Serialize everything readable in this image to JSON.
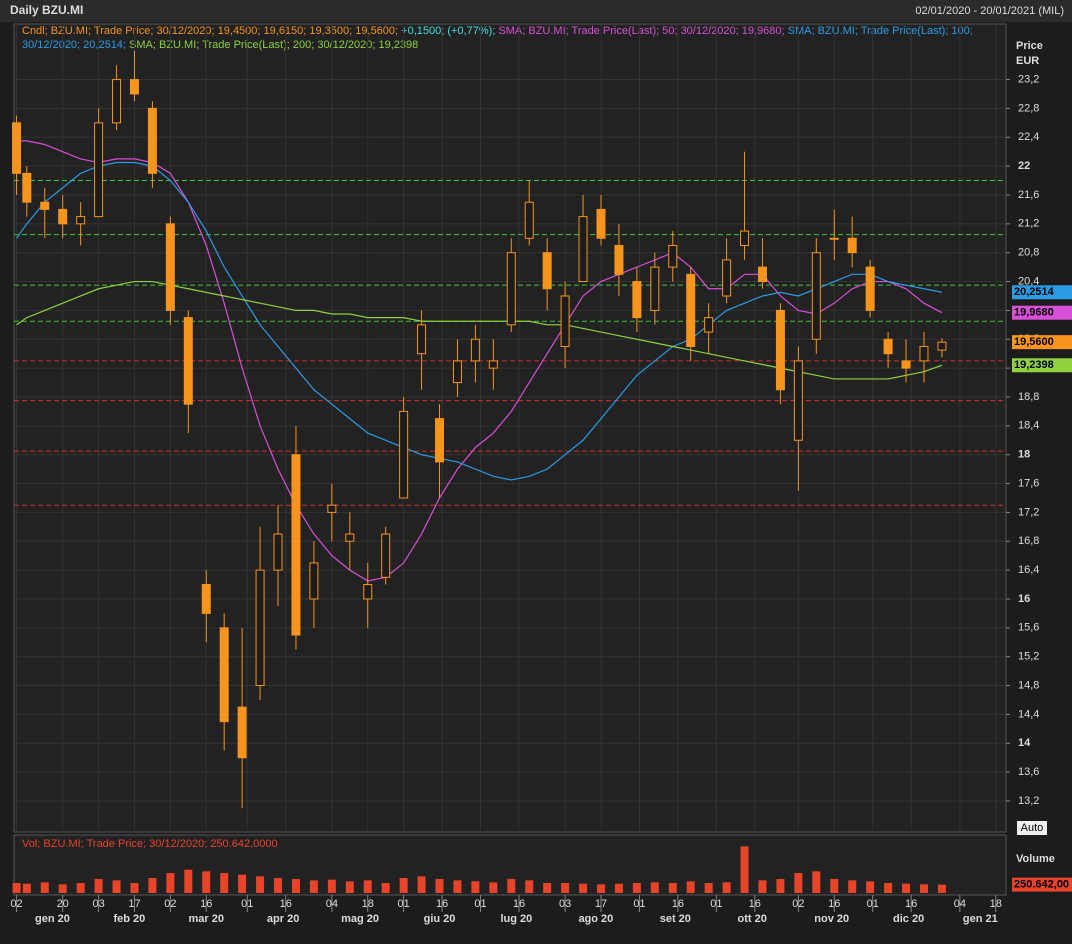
{
  "chart_data": {
    "type": "candlestick",
    "title": "Daily BZU.MI",
    "date_range": "02/01/2020 - 20/01/2021 (MIL)",
    "y_axis_title": "Price",
    "y_axis_unit": "EUR",
    "volume_title": "Volume",
    "scale_button": "Auto",
    "legend_lines": [
      [
        {
          "text": "Cndl; BZU.MI; Trade Price; 30/12/2020; 19,4500; 19,6150; 19,3500; 19,5600;",
          "color": "#f7941d"
        },
        {
          "text": "+0,1500; (+0,77%);",
          "color": "#3ee0e0"
        },
        {
          "text": "SMA; BZU.MI; Trade Price(Last); 50; 30/12/2020; 19,9680;",
          "color": "#d84fd8"
        },
        {
          "text": "SMA; BZU.MI; Trade Price(Last); 100;",
          "color": "#2b9be6"
        }
      ],
      [
        {
          "text": "30/12/2020; 20,2514;",
          "color": "#2b9be6"
        },
        {
          "text": "SMA; BZU.MI; Trade Price(Last); 200; 30/12/2020; 19,2398",
          "color": "#8fd13f"
        }
      ]
    ],
    "volume_legend": "Vol; BZU.MI; Trade Price; 30/12/2020; 250.642,0000",
    "xlim": [
      "2020-01-01",
      "2021-01-22"
    ],
    "x": [
      "2020-01-02",
      "2020-01-06",
      "2020-01-13",
      "2020-01-20",
      "2020-01-27",
      "2020-02-03",
      "2020-02-10",
      "2020-02-17",
      "2020-02-24",
      "2020-03-02",
      "2020-03-09",
      "2020-03-16",
      "2020-03-23",
      "2020-03-30",
      "2020-04-06",
      "2020-04-13",
      "2020-04-20",
      "2020-04-27",
      "2020-05-04",
      "2020-05-11",
      "2020-05-18",
      "2020-05-25",
      "2020-06-01",
      "2020-06-08",
      "2020-06-15",
      "2020-06-22",
      "2020-06-29",
      "2020-07-06",
      "2020-07-13",
      "2020-07-20",
      "2020-07-27",
      "2020-08-03",
      "2020-08-10",
      "2020-08-17",
      "2020-08-24",
      "2020-08-31",
      "2020-09-07",
      "2020-09-14",
      "2020-09-21",
      "2020-09-28",
      "2020-10-05",
      "2020-10-12",
      "2020-10-19",
      "2020-10-26",
      "2020-11-02",
      "2020-11-09",
      "2020-11-16",
      "2020-11-23",
      "2020-11-30",
      "2020-12-07",
      "2020-12-14",
      "2020-12-21",
      "2020-12-28"
    ],
    "candles": {
      "color": "#f7941d",
      "open": [
        22.6,
        21.9,
        21.5,
        21.4,
        21.2,
        21.3,
        22.6,
        23.2,
        22.8,
        21.2,
        19.9,
        16.2,
        15.6,
        14.5,
        14.8,
        16.4,
        18.0,
        16.0,
        17.2,
        16.8,
        16.0,
        16.3,
        17.4,
        19.4,
        18.5,
        19.0,
        19.3,
        19.2,
        19.8,
        21.0,
        20.8,
        19.5,
        20.4,
        21.4,
        20.9,
        20.4,
        20.0,
        20.6,
        20.5,
        19.7,
        20.2,
        20.9,
        20.6,
        20.0,
        18.2,
        19.6,
        21.0,
        21.0,
        20.6,
        19.6,
        19.3,
        19.3,
        19.45
      ],
      "high": [
        22.7,
        22.0,
        21.7,
        21.6,
        21.5,
        22.8,
        23.4,
        23.6,
        22.9,
        21.3,
        20.0,
        16.4,
        15.8,
        15.6,
        17.0,
        17.3,
        18.4,
        16.8,
        17.6,
        17.2,
        16.5,
        17.0,
        18.8,
        20.0,
        18.7,
        19.6,
        19.8,
        19.6,
        21.0,
        21.8,
        21.0,
        20.4,
        21.6,
        21.6,
        21.2,
        20.6,
        20.8,
        21.1,
        20.6,
        20.1,
        21.0,
        22.2,
        21.0,
        20.1,
        19.5,
        21.0,
        21.4,
        21.3,
        20.7,
        19.7,
        19.6,
        19.7,
        19.615
      ],
      "low": [
        21.6,
        21.3,
        21.0,
        21.0,
        20.9,
        21.3,
        22.5,
        22.9,
        21.7,
        19.8,
        18.3,
        15.4,
        13.9,
        13.1,
        14.6,
        15.9,
        15.3,
        15.6,
        16.8,
        16.4,
        15.6,
        16.2,
        17.4,
        18.9,
        17.4,
        18.8,
        19.0,
        18.9,
        19.7,
        20.9,
        20.0,
        19.2,
        20.4,
        20.9,
        20.2,
        19.7,
        19.8,
        20.4,
        19.3,
        19.4,
        20.1,
        20.7,
        20.3,
        18.7,
        17.5,
        19.4,
        20.7,
        20.6,
        19.9,
        19.2,
        19.0,
        19.0,
        19.35
      ],
      "close": [
        21.9,
        21.5,
        21.4,
        21.2,
        21.3,
        22.6,
        23.2,
        23.0,
        21.9,
        20.0,
        18.7,
        15.8,
        14.3,
        13.8,
        16.4,
        16.9,
        15.5,
        16.5,
        17.3,
        16.9,
        16.2,
        16.9,
        18.6,
        19.8,
        17.9,
        19.3,
        19.6,
        19.3,
        20.8,
        21.5,
        20.3,
        20.2,
        21.3,
        21.0,
        20.5,
        19.9,
        20.6,
        20.9,
        19.5,
        19.9,
        20.7,
        21.1,
        20.4,
        18.9,
        19.3,
        20.8,
        21.0,
        20.8,
        20.0,
        19.4,
        19.2,
        19.5,
        19.56
      ],
      "tag": {
        "value": 19.56,
        "label": "19,5600"
      }
    },
    "series": [
      {
        "name": "SMA 50",
        "color": "#d84fd8",
        "tag": {
          "value": 19.968,
          "label": "19,9680"
        },
        "values": [
          22.35,
          22.35,
          22.3,
          22.2,
          22.1,
          22.05,
          22.1,
          22.1,
          22.05,
          21.9,
          21.5,
          20.9,
          20.1,
          19.2,
          18.4,
          17.8,
          17.3,
          16.9,
          16.6,
          16.4,
          16.25,
          16.3,
          16.5,
          16.9,
          17.4,
          17.8,
          18.1,
          18.3,
          18.6,
          19.0,
          19.4,
          19.8,
          20.2,
          20.4,
          20.5,
          20.6,
          20.7,
          20.8,
          20.6,
          20.3,
          20.3,
          20.5,
          20.5,
          20.2,
          20.0,
          19.95,
          20.1,
          20.3,
          20.4,
          20.4,
          20.3,
          20.1,
          19.968
        ]
      },
      {
        "name": "SMA 100",
        "color": "#2b9be6",
        "tag": {
          "value": 20.2514,
          "label": "20,2514"
        },
        "values": [
          21.0,
          21.2,
          21.5,
          21.7,
          21.9,
          22.0,
          22.05,
          22.05,
          22.0,
          21.8,
          21.5,
          21.1,
          20.6,
          20.2,
          19.8,
          19.5,
          19.2,
          18.9,
          18.7,
          18.5,
          18.3,
          18.2,
          18.1,
          18.0,
          17.95,
          17.9,
          17.8,
          17.7,
          17.65,
          17.7,
          17.8,
          18.0,
          18.2,
          18.5,
          18.8,
          19.1,
          19.3,
          19.5,
          19.6,
          19.8,
          20.0,
          20.1,
          20.2,
          20.25,
          20.2,
          20.3,
          20.4,
          20.5,
          20.5,
          20.4,
          20.35,
          20.3,
          20.2514
        ]
      },
      {
        "name": "SMA 200",
        "color": "#8fd13f",
        "tag": {
          "value": 19.2398,
          "label": "19,2398"
        },
        "values": [
          19.8,
          19.9,
          20.0,
          20.1,
          20.2,
          20.3,
          20.35,
          20.4,
          20.4,
          20.35,
          20.3,
          20.25,
          20.2,
          20.15,
          20.1,
          20.05,
          20.0,
          20.0,
          19.95,
          19.95,
          19.9,
          19.9,
          19.9,
          19.85,
          19.85,
          19.85,
          19.85,
          19.85,
          19.85,
          19.85,
          19.8,
          19.8,
          19.75,
          19.7,
          19.65,
          19.6,
          19.55,
          19.5,
          19.45,
          19.4,
          19.35,
          19.3,
          19.25,
          19.2,
          19.15,
          19.1,
          19.05,
          19.05,
          19.05,
          19.05,
          19.1,
          19.15,
          19.2398
        ]
      }
    ],
    "levels": [
      {
        "value": 21.8,
        "color": "#3fc43f"
      },
      {
        "value": 21.05,
        "color": "#3fc43f"
      },
      {
        "value": 20.35,
        "color": "#3fc43f"
      },
      {
        "value": 19.85,
        "color": "#3fc43f"
      },
      {
        "value": 19.3,
        "color": "#d03030"
      },
      {
        "value": 18.75,
        "color": "#d03030"
      },
      {
        "value": 18.05,
        "color": "#d03030"
      },
      {
        "value": 17.3,
        "color": "#d03030"
      }
    ],
    "volume": {
      "color": "#e8442a",
      "ylim": [
        0,
        1500000
      ],
      "values": [
        300000,
        280000,
        320000,
        260000,
        300000,
        420000,
        380000,
        300000,
        450000,
        600000,
        700000,
        650000,
        600000,
        550000,
        500000,
        450000,
        420000,
        380000,
        400000,
        350000,
        380000,
        300000,
        450000,
        500000,
        420000,
        380000,
        350000,
        320000,
        420000,
        380000,
        300000,
        300000,
        280000,
        260000,
        280000,
        300000,
        320000,
        300000,
        350000,
        300000,
        320000,
        1400000,
        380000,
        420000,
        600000,
        650000,
        420000,
        380000,
        350000,
        300000,
        280000,
        260000,
        250642
      ],
      "tag": {
        "value": 250642,
        "label": "250.642,00"
      }
    },
    "ylim": [
      12.77,
      23.97
    ],
    "yticks": [
      {
        "value": 13.2,
        "label": "13,2"
      },
      {
        "value": 13.6,
        "label": "13,6"
      },
      14,
      {
        "value": 14.4,
        "label": "14,4"
      },
      {
        "value": 14.8,
        "label": "14,8"
      },
      {
        "value": 15.2,
        "label": "15,2"
      },
      {
        "value": 15.6,
        "label": "15,6"
      },
      16,
      {
        "value": 16.4,
        "label": "16,4"
      },
      {
        "value": 16.8,
        "label": "16,8"
      },
      {
        "value": 17.2,
        "label": "17,2"
      },
      {
        "value": 17.6,
        "label": "17,6"
      },
      18,
      {
        "value": 18.4,
        "label": "18,4"
      },
      {
        "value": 18.8,
        "label": "18,8"
      },
      {
        "value": 19.2,
        "label": "19,2"
      },
      {
        "value": 19.6,
        "label": "19,6"
      },
      20,
      {
        "value": 20.4,
        "label": "20,4"
      },
      {
        "value": 20.8,
        "label": "20,8"
      },
      {
        "value": 21.2,
        "label": "21,2"
      },
      {
        "value": 21.6,
        "label": "21,6"
      },
      22,
      {
        "value": 22.4,
        "label": "22,4"
      },
      {
        "value": 22.8,
        "label": "22,8"
      },
      {
        "value": 23.2,
        "label": "23,2"
      }
    ],
    "xticks": [
      {
        "value": "2020-01-02",
        "label": "02"
      },
      {
        "value": "2020-01-20",
        "label": "20"
      },
      {
        "value": "2020-02-03",
        "label": "03"
      },
      {
        "value": "2020-02-17",
        "label": "17"
      },
      {
        "value": "2020-03-02",
        "label": "02"
      },
      {
        "value": "2020-03-16",
        "label": "16"
      },
      {
        "value": "2020-04-01",
        "label": "01"
      },
      {
        "value": "2020-04-16",
        "label": "16"
      },
      {
        "value": "2020-05-04",
        "label": "04"
      },
      {
        "value": "2020-05-18",
        "label": "18"
      },
      {
        "value": "2020-06-01",
        "label": "01"
      },
      {
        "value": "2020-06-16",
        "label": "16"
      },
      {
        "value": "2020-07-01",
        "label": "01"
      },
      {
        "value": "2020-07-16",
        "label": "16"
      },
      {
        "value": "2020-08-03",
        "label": "03"
      },
      {
        "value": "2020-08-17",
        "label": "17"
      },
      {
        "value": "2020-09-01",
        "label": "01"
      },
      {
        "value": "2020-09-16",
        "label": "16"
      },
      {
        "value": "2020-10-01",
        "label": "01"
      },
      {
        "value": "2020-10-16",
        "label": "16"
      },
      {
        "value": "2020-11-02",
        "label": "02"
      },
      {
        "value": "2020-11-16",
        "label": "16"
      },
      {
        "value": "2020-12-01",
        "label": "01"
      },
      {
        "value": "2020-12-16",
        "label": "16"
      },
      {
        "value": "2021-01-04",
        "label": "04"
      },
      {
        "value": "2021-01-18",
        "label": "18"
      }
    ],
    "month_ticks": [
      {
        "value": "2020-01-16",
        "label": "gen 20"
      },
      {
        "value": "2020-02-15",
        "label": "feb 20"
      },
      {
        "value": "2020-03-16",
        "label": "mar 20"
      },
      {
        "value": "2020-04-15",
        "label": "apr 20"
      },
      {
        "value": "2020-05-15",
        "label": "mag 20"
      },
      {
        "value": "2020-06-15",
        "label": "giu 20"
      },
      {
        "value": "2020-07-15",
        "label": "lug 20"
      },
      {
        "value": "2020-08-15",
        "label": "ago 20"
      },
      {
        "value": "2020-09-15",
        "label": "set 20"
      },
      {
        "value": "2020-10-15",
        "label": "ott 20"
      },
      {
        "value": "2020-11-15",
        "label": "nov 20"
      },
      {
        "value": "2020-12-15",
        "label": "dic 20"
      },
      {
        "value": "2021-01-12",
        "label": "gen 21"
      }
    ],
    "grid": true
  }
}
